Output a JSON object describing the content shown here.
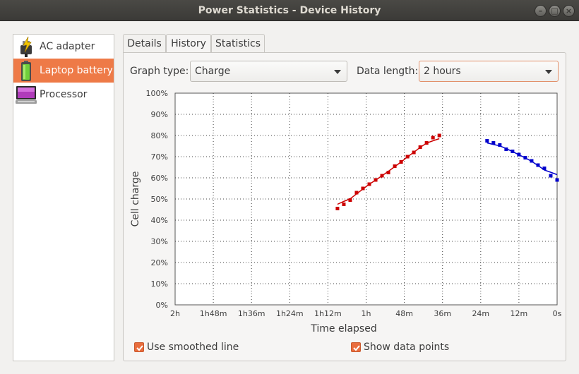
{
  "window": {
    "title": "Power Statistics - Device History"
  },
  "sidebar": {
    "items": [
      {
        "label": "AC adapter",
        "icon": "ac-adapter-icon",
        "selected": false
      },
      {
        "label": "Laptop battery",
        "icon": "battery-icon",
        "selected": true
      },
      {
        "label": "Processor",
        "icon": "processor-icon",
        "selected": false
      }
    ]
  },
  "tabs": [
    {
      "label": "Details",
      "active": false
    },
    {
      "label": "History",
      "active": true
    },
    {
      "label": "Statistics",
      "active": false
    }
  ],
  "controls": {
    "graph_type_label": "Graph type:",
    "graph_type_value": "Charge",
    "data_length_label": "Data length:",
    "data_length_value": "2 hours",
    "smoothed_line_label": "Use smoothed line",
    "smoothed_line_checked": true,
    "data_points_label": "Show data points",
    "data_points_checked": true
  },
  "colors": {
    "accent": "#ee7a47",
    "charge_series": "#cc0000",
    "discharge_series": "#0000cc"
  },
  "chart_data": {
    "type": "scatter",
    "xlabel": "Time elapsed",
    "ylabel": "Cell charge",
    "x_unit": "minutes ago",
    "xlim": [
      120,
      0
    ],
    "ylim": [
      0,
      100
    ],
    "x_tick_labels": [
      "2h",
      "1h48m",
      "1h36m",
      "1h24m",
      "1h12m",
      "1h",
      "48m",
      "36m",
      "24m",
      "12m",
      "0s"
    ],
    "y_tick_labels": [
      "100%",
      "90%",
      "80%",
      "70%",
      "60%",
      "50%",
      "40%",
      "30%",
      "20%",
      "10%",
      "0%"
    ],
    "grid": true,
    "series": [
      {
        "color": "#cc0000",
        "x": [
          69,
          67,
          65,
          63,
          61,
          59,
          57,
          55,
          53,
          51,
          49,
          47,
          45,
          43,
          41,
          39,
          37
        ],
        "y": [
          45.5,
          47.5,
          49.5,
          53,
          55,
          57,
          59,
          61,
          62.5,
          65.5,
          67.5,
          70,
          72,
          74.5,
          76.5,
          79,
          80
        ]
      },
      {
        "color": "#0000cc",
        "x": [
          22,
          20,
          18,
          16,
          14,
          12,
          10,
          8,
          6,
          4,
          2,
          0
        ],
        "y": [
          77.5,
          76.5,
          75.5,
          73.5,
          72.5,
          71,
          69.5,
          68,
          66,
          64.5,
          61,
          59
        ]
      }
    ]
  }
}
